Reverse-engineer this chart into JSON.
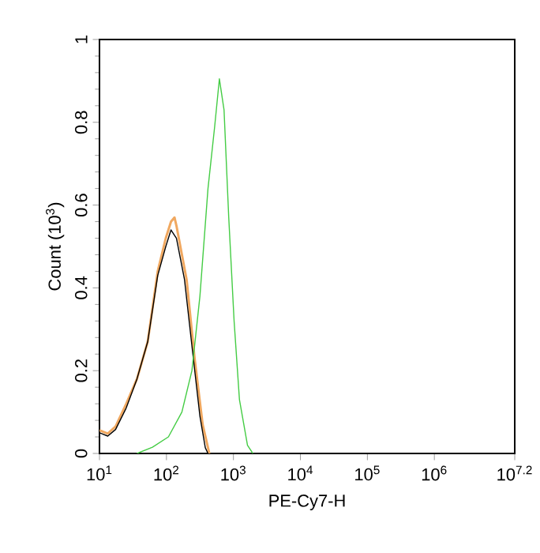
{
  "chart_data": {
    "type": "line",
    "xlabel": "PE-Cy7-H",
    "ylabel": "Count (10$^{3}$)",
    "log": "x",
    "marker": "none",
    "line_style": "solid",
    "grid": false,
    "xlim": [
      10,
      15848932
    ],
    "ylim": [
      0,
      1
    ],
    "xticks": [
      {
        "value": 10,
        "label": "10$^{1}$"
      },
      {
        "value": 100,
        "label": "10$^{2}$"
      },
      {
        "value": 1000,
        "label": "10$^{3}$"
      },
      {
        "value": 10000,
        "label": "10$^{4}$"
      },
      {
        "value": 100000,
        "label": "10$^{5}$"
      },
      {
        "value": 1000000,
        "label": "10$^{6}$"
      },
      {
        "value": 15848932,
        "label": "10$^{7.2}$"
      }
    ],
    "yticks": [
      0,
      0.2,
      0.4,
      0.6,
      0.8,
      1
    ],
    "series": [
      {
        "color": "#f0a860",
        "x": [
          10,
          13.3,
          17.4,
          25.1,
          36.3,
          52.5,
          74.1,
          97.7,
          117,
          132,
          141,
          200,
          263,
          347,
          437
        ],
        "values": [
          0.056,
          0.048,
          0.065,
          0.12,
          0.18,
          0.27,
          0.44,
          0.52,
          0.56,
          0.57,
          0.55,
          0.42,
          0.23,
          0.07,
          0
        ]
      },
      {
        "color": "#000000",
        "x": [
          10,
          13.3,
          17.4,
          25.1,
          36.3,
          52.5,
          74.1,
          97.7,
          117,
          141,
          186,
          240,
          316,
          380,
          417
        ],
        "values": [
          0.05,
          0.042,
          0.058,
          0.11,
          0.18,
          0.27,
          0.43,
          0.5,
          0.54,
          0.52,
          0.42,
          0.26,
          0.09,
          0.014,
          0
        ]
      },
      {
        "color": "#44cc44",
        "x": [
          36.3,
          61.7,
          107,
          170,
          240,
          316,
          417,
          525,
          617,
          724,
          851,
          1023,
          1230,
          1622,
          1950
        ],
        "values": [
          0,
          0.015,
          0.04,
          0.1,
          0.2,
          0.38,
          0.64,
          0.79,
          0.905,
          0.83,
          0.57,
          0.32,
          0.13,
          0.02,
          0
        ]
      }
    ]
  }
}
